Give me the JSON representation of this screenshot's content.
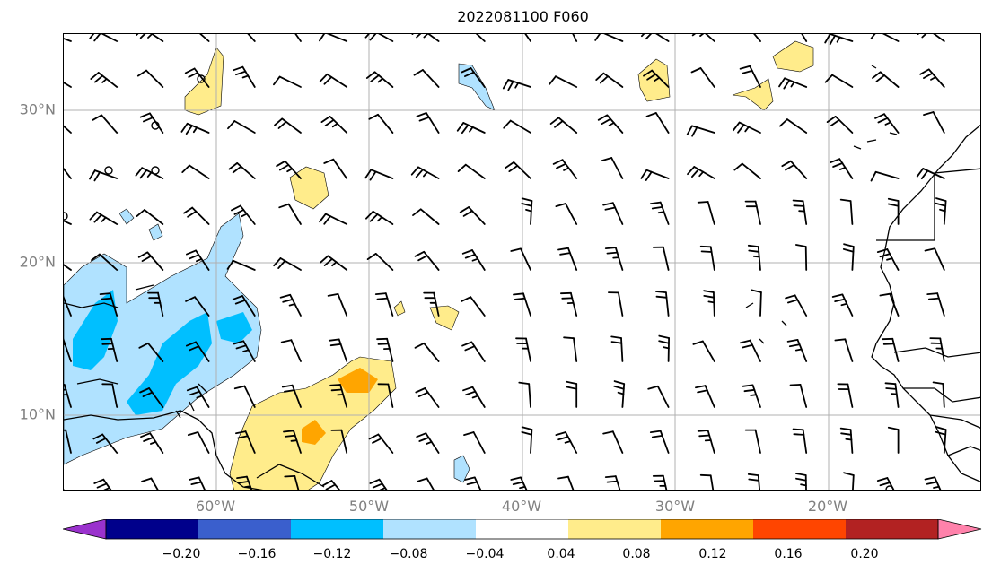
{
  "title": "2022081100 F060",
  "map": {
    "lat_labels": [
      "30°N",
      "20°N",
      "10°N"
    ],
    "lon_labels": [
      "60°W",
      "50°W",
      "40°W",
      "30°W",
      "20°W"
    ],
    "extent_lon": [
      -69.9,
      -9.9
    ],
    "extent_lat": [
      5,
      35
    ]
  },
  "colorbar": {
    "levels": [
      -0.2,
      -0.16,
      -0.12,
      -0.08,
      -0.04,
      0.04,
      0.08,
      0.12,
      0.16,
      0.2
    ],
    "tick_labels": [
      "−0.20",
      "−0.16",
      "−0.12",
      "−0.08",
      "−0.04",
      "0.04",
      "0.08",
      "0.12",
      "0.16",
      "0.20"
    ],
    "colors": [
      "#9a32cd",
      "#00008b",
      "#3a5fcd",
      "#00bfff",
      "#b0e2ff",
      "#ffffff",
      "#ffec8b",
      "#ffa500",
      "#ff4500",
      "#b22222",
      "#ff82ab"
    ],
    "extend": "both"
  },
  "colors": {
    "grid": "#b0b0b0",
    "label": "#808080",
    "coast": "#000000"
  }
}
